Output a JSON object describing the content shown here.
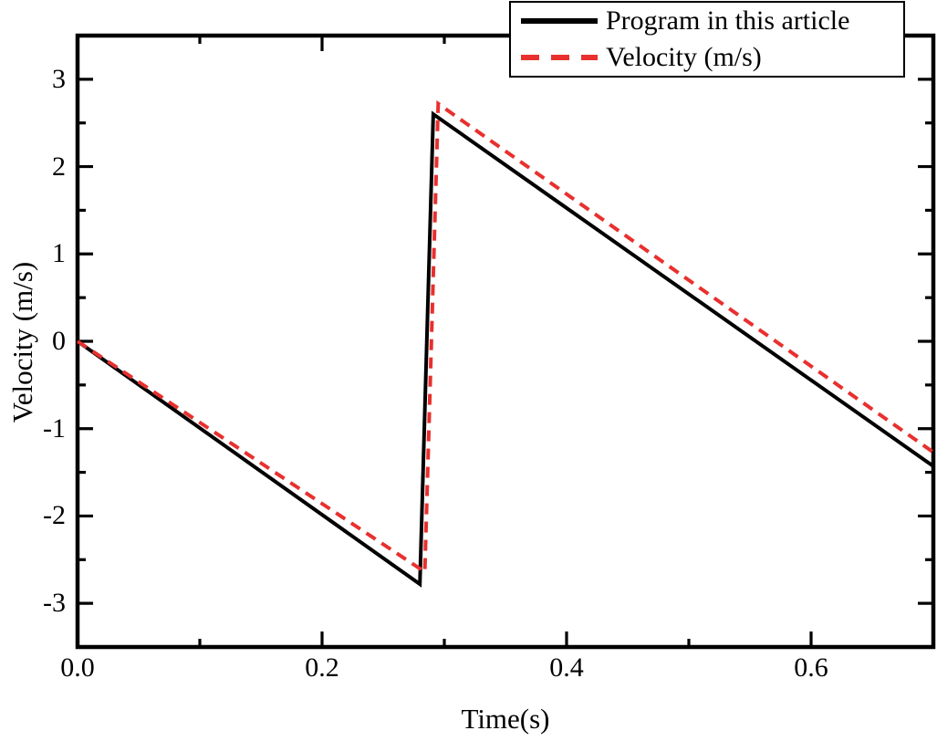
{
  "chart_data": {
    "type": "line",
    "title": "",
    "xlabel": "Time(s)",
    "ylabel": "Velocity (m/s)",
    "xlim": [
      0.0,
      0.7
    ],
    "ylim": [
      -3.5,
      3.5
    ],
    "x_major_ticks": [
      0.0,
      0.2,
      0.4,
      0.6
    ],
    "x_major_labels": [
      "0.0",
      "0.2",
      "0.4",
      "0.6"
    ],
    "x_minor_ticks": [
      0.1,
      0.3,
      0.5,
      0.7
    ],
    "y_major_ticks": [
      3,
      2,
      1,
      0,
      -1,
      -2,
      -3
    ],
    "y_major_labels": [
      "3",
      "2",
      "1",
      "0",
      "-1",
      "-2",
      "-3"
    ],
    "y_minor_ticks": [
      2.5,
      1.5,
      0.5,
      -0.5,
      -1.5,
      -2.5
    ],
    "grid": false,
    "axis_color": "#000000",
    "background_color": "#ffffff",
    "legend": {
      "position": "top-right",
      "entries": [
        {
          "label": "Program in this article",
          "color": "#000000",
          "style": "solid"
        },
        {
          "label": "Velocity (m/s)",
          "color": "#e8302e",
          "style": "dashed"
        }
      ]
    },
    "series": [
      {
        "name": "Program in this article",
        "color": "#000000",
        "style": "solid",
        "points": [
          [
            0.0,
            0.0
          ],
          [
            0.28,
            -2.78
          ],
          [
            0.291,
            2.6
          ],
          [
            0.7,
            -1.43
          ]
        ]
      },
      {
        "name": "Velocity (m/s)",
        "color": "#e8302e",
        "style": "dashed",
        "points": [
          [
            0.0,
            0.0
          ],
          [
            0.284,
            -2.64
          ],
          [
            0.295,
            2.72
          ],
          [
            0.7,
            -1.27
          ]
        ]
      }
    ]
  }
}
